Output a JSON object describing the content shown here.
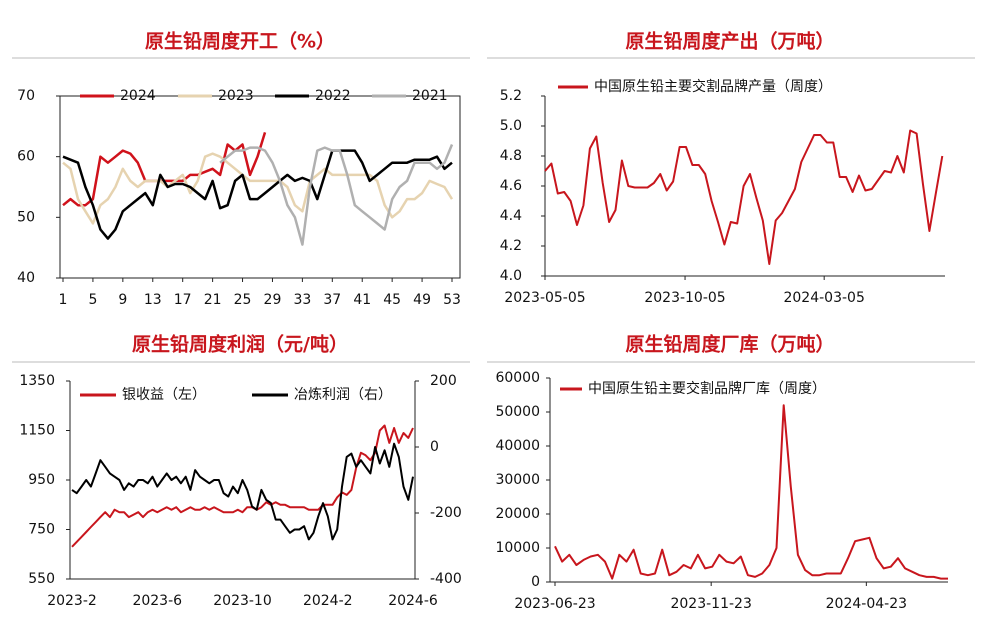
{
  "chart_data": [
    {
      "type": "line",
      "title": "原生铅周度开工（%）",
      "x": [
        1,
        2,
        3,
        4,
        5,
        6,
        7,
        8,
        9,
        10,
        11,
        12,
        13,
        14,
        15,
        16,
        17,
        18,
        19,
        20,
        21,
        22,
        23,
        24,
        25,
        26,
        27,
        28,
        29,
        30,
        31,
        32,
        33,
        34,
        35,
        36,
        37,
        38,
        39,
        40,
        41,
        42,
        43,
        44,
        45,
        46,
        47,
        48,
        49,
        50,
        51,
        52,
        53
      ],
      "xlim": [
        1,
        53
      ],
      "xticks": [
        1,
        5,
        9,
        13,
        17,
        21,
        25,
        29,
        33,
        37,
        41,
        45,
        49,
        53
      ],
      "ylim": [
        40,
        70
      ],
      "yticks": [
        40,
        50,
        60,
        70
      ],
      "series": [
        {
          "name": "2024",
          "color": "#d0121b",
          "values": [
            52,
            53,
            52,
            52,
            53,
            60,
            59,
            60,
            61,
            60.5,
            59,
            56,
            56,
            56,
            56,
            56,
            56,
            57,
            57,
            57.5,
            58,
            57,
            62,
            61,
            62,
            57,
            60,
            64,
            null,
            null,
            null,
            null,
            null,
            null,
            null,
            null,
            null,
            null,
            null,
            null,
            null,
            null,
            null,
            null,
            null,
            null,
            null,
            null,
            null,
            null,
            null,
            null,
            null
          ]
        },
        {
          "name": "2023",
          "color": "#e6d3b0",
          "values": [
            59,
            58,
            53,
            51,
            49,
            52,
            53,
            55,
            58,
            56,
            55,
            56,
            56,
            56,
            55,
            56,
            57,
            54,
            56,
            60,
            60.5,
            60,
            59,
            58,
            57,
            56,
            56,
            56,
            56,
            56,
            55,
            52,
            51,
            56,
            57,
            58,
            57,
            57,
            57,
            57,
            57,
            57,
            56,
            52,
            50,
            51,
            53,
            53,
            54,
            56,
            55.5,
            55,
            53
          ]
        },
        {
          "name": "2022",
          "color": "#000000",
          "values": [
            60,
            59.5,
            59,
            55,
            52,
            48,
            46.5,
            48,
            51,
            52,
            53,
            54,
            52,
            57,
            55,
            55.5,
            55.5,
            55,
            54,
            53,
            56,
            51.5,
            52,
            56,
            57,
            53,
            53,
            54,
            55,
            56,
            57,
            56,
            56.5,
            56,
            53,
            57,
            61,
            61,
            61,
            61,
            59,
            56,
            57,
            58,
            59,
            59,
            59,
            59.5,
            59.5,
            59.5,
            60,
            58,
            59
          ]
        },
        {
          "name": "2021",
          "color": "#b0b0b0",
          "values": [
            null,
            null,
            null,
            null,
            null,
            null,
            null,
            null,
            null,
            null,
            null,
            null,
            null,
            null,
            null,
            null,
            null,
            null,
            null,
            null,
            null,
            59,
            60,
            61,
            61,
            61.5,
            61.5,
            61,
            59,
            56,
            52,
            50,
            45.5,
            55,
            61,
            61.5,
            61,
            61,
            57,
            52,
            51,
            50,
            49,
            48,
            53,
            55,
            56,
            59,
            59,
            59,
            58,
            59,
            62
          ]
        }
      ]
    },
    {
      "type": "line",
      "title": "原生铅周度产出（万吨）",
      "x": [
        "2023-05-05",
        "2023-05-12",
        "2023-05-19",
        "2023-05-26",
        "2023-06-02",
        "2023-06-09",
        "2023-06-16",
        "2023-06-23",
        "2023-06-30",
        "2023-07-07",
        "2023-07-14",
        "2023-07-21",
        "2023-07-28",
        "2023-08-04",
        "2023-08-11",
        "2023-08-18",
        "2023-08-25",
        "2023-09-01",
        "2023-09-08",
        "2023-09-15",
        "2023-09-22",
        "2023-09-29",
        "2023-10-06",
        "2023-10-13",
        "2023-10-20",
        "2023-10-27",
        "2023-11-03",
        "2023-11-10",
        "2023-11-17",
        "2023-11-24",
        "2023-12-01",
        "2023-12-08",
        "2023-12-15",
        "2023-12-22",
        "2023-12-29",
        "2024-01-05",
        "2024-01-12",
        "2024-01-19",
        "2024-01-26",
        "2024-02-02",
        "2024-02-09",
        "2024-02-16",
        "2024-02-23",
        "2024-03-01",
        "2024-03-08",
        "2024-03-15",
        "2024-03-22",
        "2024-03-29",
        "2024-04-05",
        "2024-04-12",
        "2024-04-19",
        "2024-04-26",
        "2024-05-03",
        "2024-05-10",
        "2024-05-17",
        "2024-05-24",
        "2024-05-31",
        "2024-06-07",
        "2024-06-14",
        "2024-06-21",
        "2024-06-28",
        "2024-07-05",
        "2024-07-12"
      ],
      "xlim": [
        "2023-05-05",
        "2024-07-15"
      ],
      "xticks": [
        "2023-05-05",
        "2023-10-05",
        "2024-03-05"
      ],
      "ylim": [
        4.0,
        5.2
      ],
      "yticks": [
        {
          "value": 4.0,
          "label": "4.0"
        },
        4.2,
        4.4,
        4.6,
        4.8,
        {
          "value": 5.0,
          "label": "5.0"
        },
        5.2
      ],
      "series": [
        {
          "name": "中国原生铅主要交割品牌产量（周度）",
          "color": "#c8161d",
          "values": [
            4.7,
            4.75,
            4.55,
            4.56,
            4.5,
            4.34,
            4.47,
            4.85,
            4.93,
            4.62,
            4.36,
            4.44,
            4.77,
            4.6,
            4.59,
            4.59,
            4.59,
            4.62,
            4.68,
            4.57,
            4.63,
            4.86,
            4.86,
            4.74,
            4.74,
            4.68,
            4.5,
            4.36,
            4.21,
            4.36,
            4.35,
            4.6,
            4.68,
            4.52,
            4.37,
            4.08,
            4.37,
            4.42,
            4.5,
            4.58,
            4.76,
            4.85,
            4.94,
            4.94,
            4.89,
            4.89,
            4.66,
            4.66,
            4.56,
            4.67,
            4.57,
            4.58,
            4.64,
            4.7,
            4.69,
            4.8,
            4.69,
            4.97,
            4.95,
            4.61,
            4.3,
            4.55,
            4.8
          ]
        }
      ]
    },
    {
      "type": "line",
      "title": "原生铅周度利润（元/吨）",
      "categories": [
        "2023-2",
        null,
        null,
        null,
        null,
        null,
        null,
        null,
        null,
        null,
        null,
        null,
        null,
        null,
        null,
        null,
        null,
        null,
        "2023-6",
        null,
        null,
        null,
        null,
        null,
        null,
        null,
        null,
        null,
        null,
        null,
        null,
        null,
        null,
        null,
        null,
        null,
        "2023-10",
        null,
        null,
        null,
        null,
        null,
        null,
        null,
        null,
        null,
        null,
        null,
        null,
        null,
        null,
        null,
        null,
        null,
        "2024-2",
        null,
        null,
        null,
        null,
        null,
        null,
        null,
        null,
        null,
        null,
        null,
        null,
        null,
        null,
        null,
        null,
        null,
        "2024-6"
      ],
      "ylim": [
        550,
        1350
      ],
      "yticks": [
        550,
        750,
        950,
        1150,
        1350
      ],
      "y2lim": [
        -400,
        200
      ],
      "y2ticks": [
        -400,
        -200,
        0,
        200
      ],
      "series": [
        {
          "name": "银收益（左）",
          "color": "#c8161d",
          "values": [
            680,
            700,
            720,
            740,
            760,
            780,
            800,
            820,
            800,
            830,
            820,
            820,
            800,
            810,
            820,
            800,
            820,
            830,
            820,
            830,
            840,
            830,
            840,
            820,
            830,
            840,
            830,
            830,
            840,
            830,
            840,
            830,
            820,
            820,
            820,
            830,
            820,
            840,
            840,
            830,
            840,
            860,
            850,
            860,
            850,
            850,
            840,
            840,
            840,
            840,
            830,
            830,
            830,
            850,
            850,
            850,
            880,
            900,
            890,
            910,
            1000,
            1060,
            1050,
            1030,
            1060,
            1150,
            1170,
            1100,
            1160,
            1100,
            1140,
            1120,
            1160
          ]
        },
        {
          "name": "冶炼利润（右）",
          "color": "#000000",
          "axis": "y2",
          "values": [
            -130,
            -140,
            -120,
            -100,
            -120,
            -80,
            -40,
            -60,
            -80,
            -90,
            -100,
            -130,
            -110,
            -120,
            -100,
            -100,
            -110,
            -90,
            -120,
            -100,
            -80,
            -100,
            -90,
            -110,
            -90,
            -130,
            -70,
            -90,
            -100,
            -110,
            -100,
            -100,
            -140,
            -150,
            -120,
            -140,
            -100,
            -130,
            -180,
            -190,
            -130,
            -160,
            -170,
            -220,
            -220,
            -240,
            -260,
            -250,
            -250,
            -240,
            -280,
            -260,
            -210,
            -170,
            -210,
            -280,
            -250,
            -120,
            -30,
            -20,
            -60,
            -40,
            -60,
            -80,
            0,
            -50,
            -10,
            -60,
            10,
            -30,
            -120,
            -160,
            -90
          ]
        }
      ]
    },
    {
      "type": "line",
      "title": "原生铅周度厂库（万吨）",
      "x": [
        "2023-06-23",
        "2023-06-30",
        "2023-07-07",
        "2023-07-14",
        "2023-07-21",
        "2023-07-28",
        "2023-08-04",
        "2023-08-11",
        "2023-08-18",
        "2023-08-25",
        "2023-09-01",
        "2023-09-08",
        "2023-09-15",
        "2023-09-22",
        "2023-09-29",
        "2023-10-06",
        "2023-10-13",
        "2023-10-20",
        "2023-10-27",
        "2023-11-03",
        "2023-11-10",
        "2023-11-17",
        "2023-11-24",
        "2023-12-01",
        "2023-12-08",
        "2023-12-15",
        "2023-12-22",
        "2023-12-29",
        "2024-01-05",
        "2024-01-12",
        "2024-01-19",
        "2024-01-26",
        "2024-02-02",
        "2024-02-09",
        "2024-02-16",
        "2024-02-23",
        "2024-03-01",
        "2024-03-08",
        "2024-03-15",
        "2024-03-22",
        "2024-03-29",
        "2024-04-05",
        "2024-04-12",
        "2024-04-19",
        "2024-04-26",
        "2024-05-03",
        "2024-05-10",
        "2024-05-17",
        "2024-05-24",
        "2024-05-31",
        "2024-06-07",
        "2024-06-14",
        "2024-06-21",
        "2024-06-28",
        "2024-07-05",
        "2024-07-12"
      ],
      "xlim": [
        "2023-06-23",
        "2024-07-12"
      ],
      "xticks": [
        "2023-06-23",
        "2023-11-23",
        "2024-04-23"
      ],
      "ylim": [
        0,
        60000
      ],
      "yticks": [
        0,
        10000,
        20000,
        30000,
        40000,
        50000,
        60000
      ],
      "series": [
        {
          "name": "中国原生铅主要交割品牌厂库（周度）",
          "color": "#c8161d",
          "values": [
            10500,
            6000,
            8000,
            5000,
            6500,
            7500,
            8000,
            6000,
            1000,
            8000,
            6000,
            9500,
            2500,
            2000,
            2500,
            9500,
            2000,
            3000,
            5000,
            4000,
            8000,
            4000,
            4500,
            8000,
            6000,
            5500,
            7500,
            2000,
            1500,
            2500,
            5000,
            10000,
            52000,
            28000,
            8000,
            3500,
            2000,
            2000,
            2500,
            2500,
            2500,
            7000,
            12000,
            12500,
            13000,
            7000,
            4000,
            4500,
            7000,
            4000,
            3000,
            2000,
            1500,
            1500,
            1000,
            1000
          ]
        }
      ]
    }
  ]
}
